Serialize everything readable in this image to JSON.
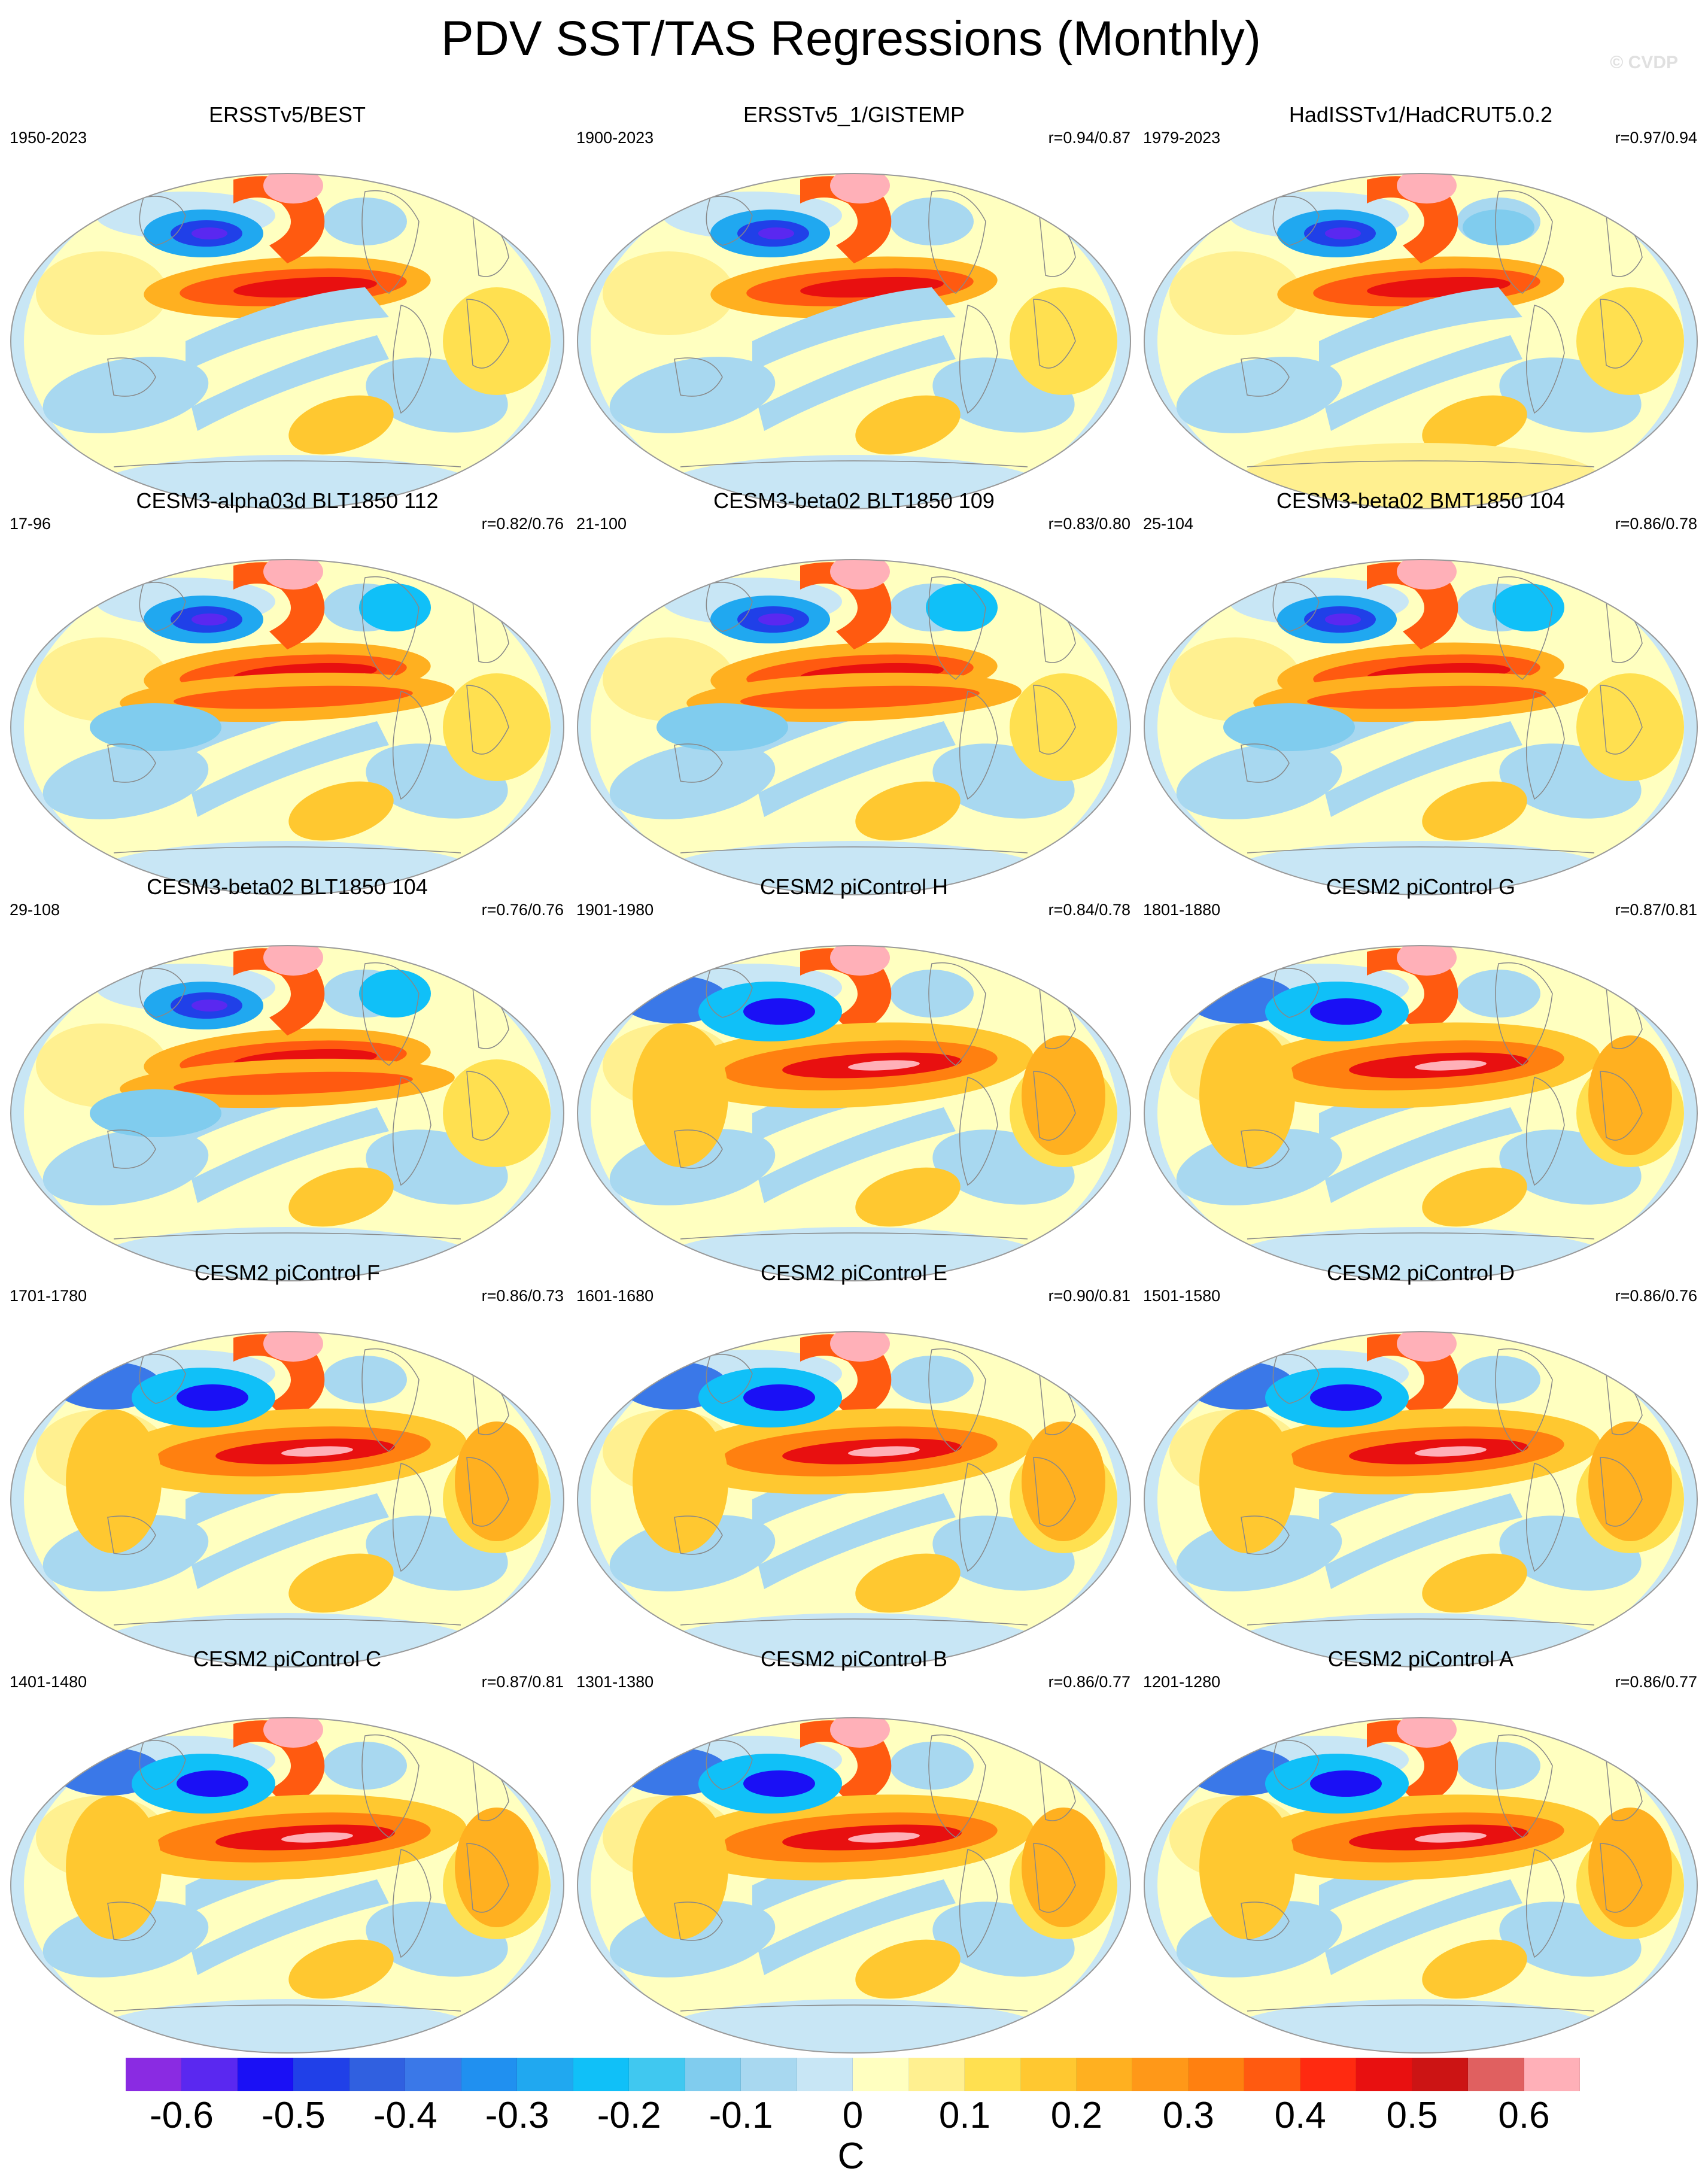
{
  "title": "PDV SST/TAS Regressions (Monthly)",
  "watermark": "© CVDP",
  "panels": [
    {
      "title": "ERSSTv5/BEST",
      "period": "1950-2023",
      "corr": "",
      "pattern": "obs1"
    },
    {
      "title": "ERSSTv5_1/GISTEMP",
      "period": "1900-2023",
      "corr": "r=0.94/0.87",
      "pattern": "obs2"
    },
    {
      "title": "HadISSTv1/HadCRUT5.0.2",
      "period": "1979-2023",
      "corr": "r=0.97/0.94",
      "pattern": "obs3"
    },
    {
      "title": "CESM3-alpha03d BLT1850 112",
      "period": "17-96",
      "corr": "r=0.82/0.76",
      "pattern": "cesm3"
    },
    {
      "title": "CESM3-beta02 BLT1850 109",
      "period": "21-100",
      "corr": "r=0.83/0.80",
      "pattern": "cesm3"
    },
    {
      "title": "CESM3-beta02 BMT1850 104",
      "period": "25-104",
      "corr": "r=0.86/0.78",
      "pattern": "cesm3"
    },
    {
      "title": "CESM3-beta02 BLT1850 104",
      "period": "29-108",
      "corr": "r=0.76/0.76",
      "pattern": "cesm3"
    },
    {
      "title": "CESM2 piControl H",
      "period": "1901-1980",
      "corr": "r=0.84/0.78",
      "pattern": "cesm2"
    },
    {
      "title": "CESM2 piControl G",
      "period": "1801-1880",
      "corr": "r=0.87/0.81",
      "pattern": "cesm2"
    },
    {
      "title": "CESM2 piControl F",
      "period": "1701-1780",
      "corr": "r=0.86/0.73",
      "pattern": "cesm2"
    },
    {
      "title": "CESM2 piControl E",
      "period": "1601-1680",
      "corr": "r=0.90/0.81",
      "pattern": "cesm2"
    },
    {
      "title": "CESM2 piControl D",
      "period": "1501-1580",
      "corr": "r=0.86/0.76",
      "pattern": "cesm2"
    },
    {
      "title": "CESM2 piControl C",
      "period": "1401-1480",
      "corr": "r=0.87/0.81",
      "pattern": "cesm2"
    },
    {
      "title": "CESM2 piControl B",
      "period": "1301-1380",
      "corr": "r=0.86/0.77",
      "pattern": "cesm2"
    },
    {
      "title": "CESM2 piControl A",
      "period": "1201-1280",
      "corr": "r=0.86/0.77",
      "pattern": "cesm2"
    }
  ],
  "colorbar": {
    "unit": "C",
    "colors": [
      "#8a2be2",
      "#5a28f0",
      "#1a10f5",
      "#2040e8",
      "#3060e0",
      "#3a78e8",
      "#2090f0",
      "#20a8f0",
      "#10c0f8",
      "#40c8f0",
      "#80ccee",
      "#a8d8f0",
      "#c8e6f5",
      "#ffffc0",
      "#fff090",
      "#ffe050",
      "#ffc830",
      "#ffb020",
      "#ff9818",
      "#ff8010",
      "#ff5a10",
      "#ff2a10",
      "#e81010",
      "#cc1414",
      "#e06060",
      "#ffb0b8"
    ],
    "ticks": [
      "-0.6",
      "-0.5",
      "-0.4",
      "-0.3",
      "-0.2",
      "-0.1",
      "0",
      "0.1",
      "0.2",
      "0.3",
      "0.4",
      "0.5",
      "0.6"
    ],
    "tick_values": [
      -0.6,
      -0.5,
      -0.4,
      -0.3,
      -0.2,
      -0.1,
      0,
      0.1,
      0.2,
      0.3,
      0.4,
      0.5,
      0.6
    ],
    "vmin": -0.65,
    "vmax": 0.65
  }
}
